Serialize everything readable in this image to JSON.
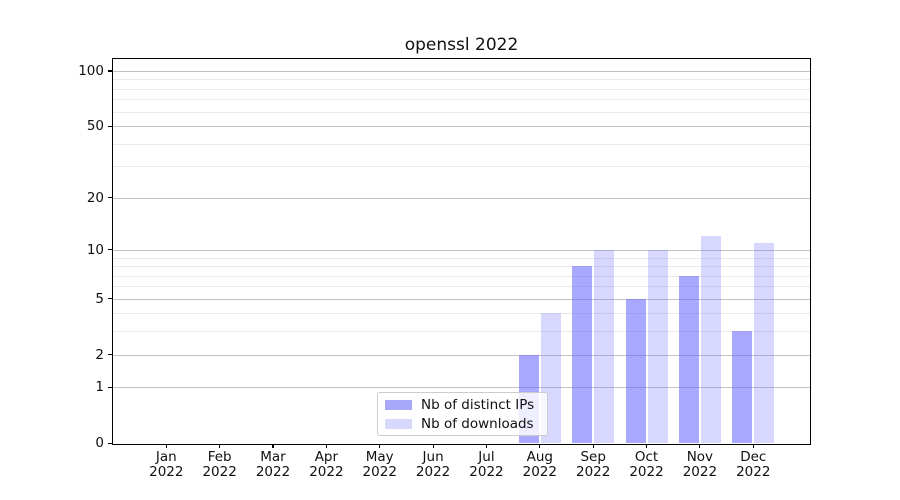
{
  "chart_data": {
    "type": "bar",
    "title": "openssl 2022",
    "categories": [
      {
        "month": "Jan",
        "year": "2022"
      },
      {
        "month": "Feb",
        "year": "2022"
      },
      {
        "month": "Mar",
        "year": "2022"
      },
      {
        "month": "Apr",
        "year": "2022"
      },
      {
        "month": "May",
        "year": "2022"
      },
      {
        "month": "Jun",
        "year": "2022"
      },
      {
        "month": "Jul",
        "year": "2022"
      },
      {
        "month": "Aug",
        "year": "2022"
      },
      {
        "month": "Sep",
        "year": "2022"
      },
      {
        "month": "Oct",
        "year": "2022"
      },
      {
        "month": "Nov",
        "year": "2022"
      },
      {
        "month": "Dec",
        "year": "2022"
      }
    ],
    "series": [
      {
        "name": "Nb of distinct IPs",
        "values": [
          0,
          0,
          0,
          0,
          0,
          0,
          0,
          2,
          8,
          5,
          7,
          3
        ],
        "fill": "rgba(110,110,255,0.6)",
        "legend_swatch": "#a8a8fa"
      },
      {
        "name": "Nb of downloads",
        "values": [
          0,
          0,
          0,
          0,
          0,
          0,
          0,
          4,
          10,
          10,
          12,
          11
        ],
        "fill": "rgba(110,110,255,0.27)",
        "legend_swatch": "#d8d8fa"
      }
    ],
    "yscale": "log1p",
    "ylim": [
      0,
      116
    ],
    "yticks": [
      0,
      1,
      2,
      5,
      10,
      20,
      50,
      100
    ],
    "minor_yticks": [
      3,
      4,
      6,
      7,
      8,
      9,
      30,
      40,
      60,
      70,
      80,
      90
    ],
    "grid": {
      "major_color": "#c3c3c3",
      "minor_color": "#e9e9e9"
    },
    "legend_position": "lower center"
  }
}
